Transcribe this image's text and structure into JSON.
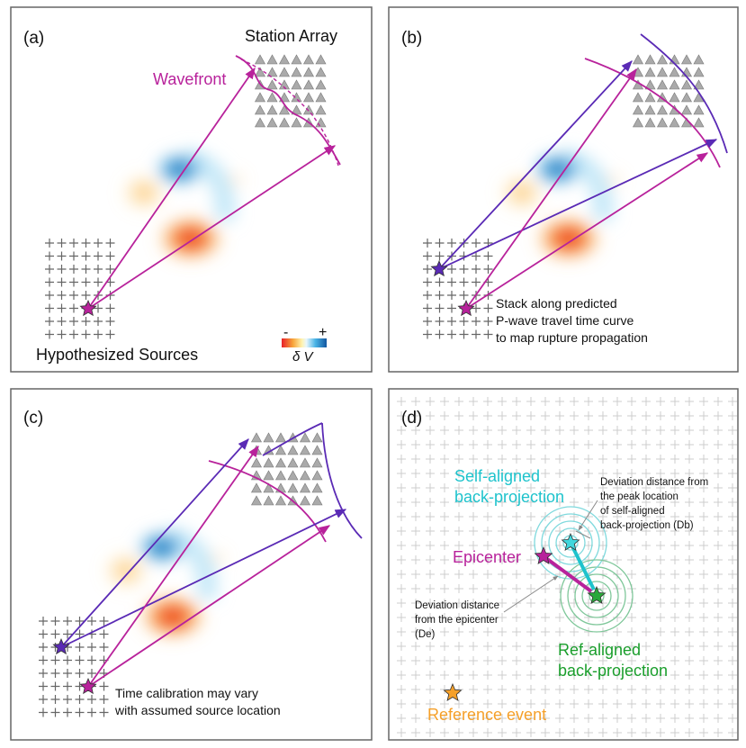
{
  "panels": [
    {
      "label": "(a)",
      "station_label": "Station Array",
      "wavefront_label": "Wavefront",
      "sources_label": "Hypothesized Sources",
      "colorbar": {
        "minus": "-",
        "plus": "+",
        "label": "δ V"
      }
    },
    {
      "label": "(b)",
      "note": [
        "Stack along predicted",
        "P-wave travel time curve",
        "to map rupture propagation"
      ]
    },
    {
      "label": "(c)",
      "note": [
        "Time calibration may vary",
        "with assumed source location"
      ]
    },
    {
      "label": "(d)",
      "self_aligned": [
        "Self-aligned",
        "back-projection"
      ],
      "db_note": [
        "Deviation distance from",
        "the peak location",
        "of self-aligned",
        "back-projection (Db)"
      ],
      "epicenter": "Epicenter",
      "de_note": [
        "Deviation distance",
        "from the epicenter",
        "(De)"
      ],
      "ref_aligned": [
        "Ref-aligned",
        "back-projection"
      ],
      "reference": "Reference event"
    }
  ]
}
